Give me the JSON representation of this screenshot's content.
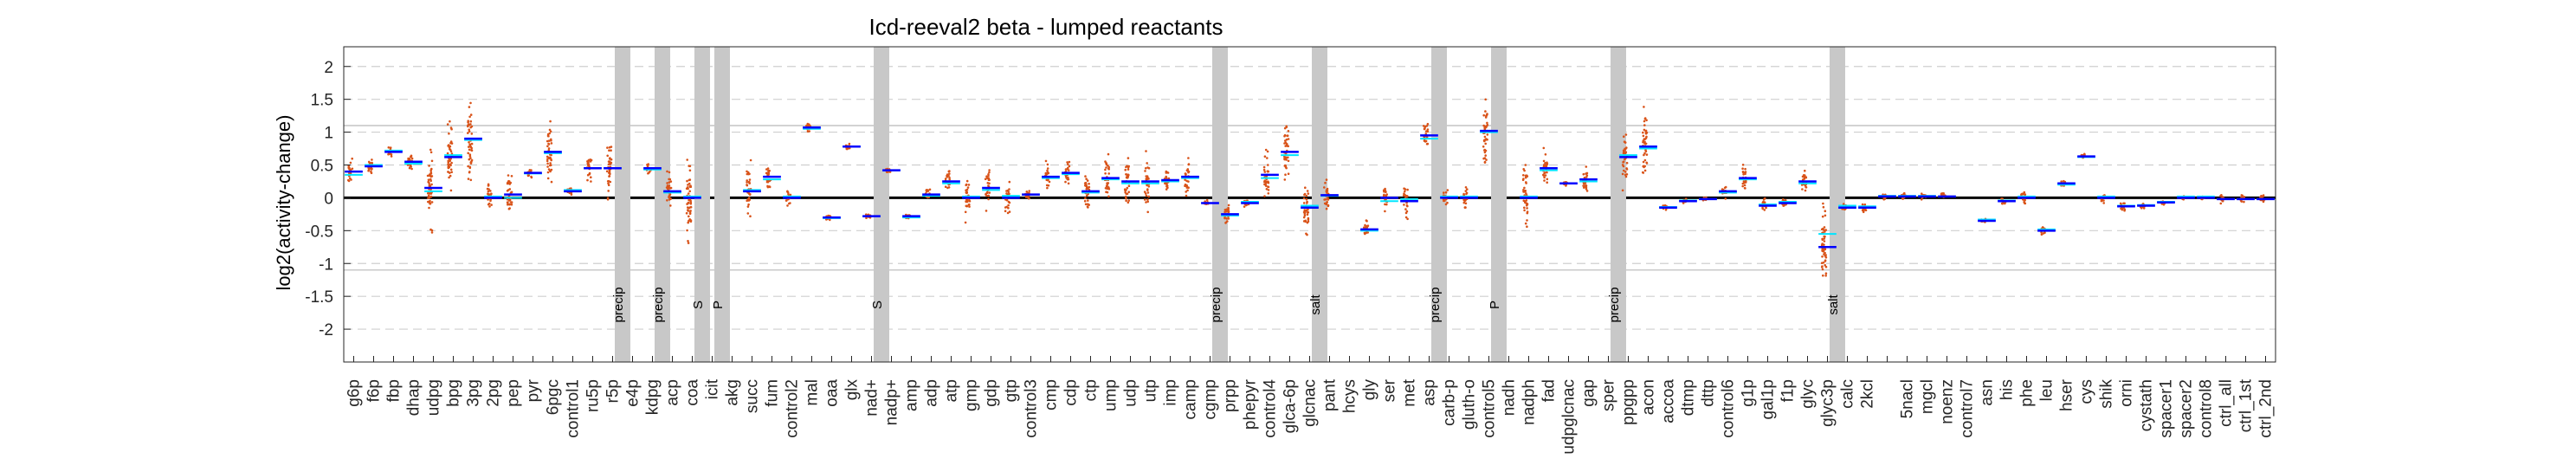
{
  "chart_data": {
    "type": "scatter",
    "title": "Icd-reeval2 beta - lumped reactants",
    "xlabel": "",
    "ylabel": "log2(activity-change)",
    "ylim": [
      -2.5,
      2.3
    ],
    "yticks": [
      -2,
      -1.5,
      -1,
      -0.5,
      0,
      0.5,
      1,
      1.5,
      2
    ],
    "grid": "dashed horizontal at ±0.5 steps, solid at ±1.1",
    "colors": {
      "points": "#d95319",
      "mean": "#0000ff",
      "median": "#00e5ff",
      "zero": "#000000",
      "band": "#c8c8c8"
    },
    "categories": [
      "g6p",
      "f6p",
      "fbp",
      "dhap",
      "udpg",
      "bpg",
      "3pg",
      "2pg",
      "pep",
      "pyr",
      "6pgc",
      "control1",
      "ru5p",
      "r5p",
      "e4p",
      "kdpg",
      "acp",
      "coa",
      "icit",
      "akg",
      "succ",
      "fum",
      "control2",
      "mal",
      "oaa",
      "glx",
      "nad+",
      "nadp+",
      "amp",
      "adp",
      "atp",
      "gmp",
      "gdp",
      "gtp",
      "control3",
      "cmp",
      "cdp",
      "ctp",
      "ump",
      "udp",
      "utp",
      "imp",
      "camp",
      "cgmp",
      "prpp",
      "phepyr",
      "control4",
      "glca-6p",
      "glcnac",
      "pant",
      "hcys",
      "gly",
      "ser",
      "met",
      "asp",
      "carb-p",
      "gluth-o",
      "control5",
      "nadh",
      "nadph",
      "fad",
      "udpglcnac",
      "gap",
      "sper",
      "ppgpp",
      "acon",
      "accoa",
      "dtmp",
      "dttp",
      "control6",
      "g1p",
      "gal1p",
      "f1p",
      "glyc",
      "glyc3p",
      "calc",
      "2kcl",
      "2kcl2",
      "5nacl",
      "mgcl",
      "noenz",
      "control7",
      "asn",
      "his",
      "phe",
      "leu",
      "hser",
      "cys",
      "shik",
      "orni",
      "cystath",
      "spacer1",
      "spacer2",
      "control8",
      "ctrl_all",
      "ctrl_1st",
      "ctrl_2nd"
    ],
    "category_labels": [
      "g6p",
      "f6p",
      "fbp",
      "dhap",
      "udpg",
      "bpg",
      "3pg",
      "2pg",
      "pep",
      "pyr",
      "6pgc",
      "control1",
      "ru5p",
      "r5p",
      "e4p",
      "kdpg",
      "acp",
      "coa",
      "icit",
      "akg",
      "succ",
      "fum",
      "control2",
      "mal",
      "oaa",
      "glx",
      "nad+",
      "nadp+",
      "amp",
      "adp",
      "atp",
      "gmp",
      "gdp",
      "gtp",
      "control3",
      "cmp",
      "cdp",
      "ctp",
      "ump",
      "udp",
      "utp",
      "imp",
      "camp",
      "cgmp",
      "prpp",
      "phepyr",
      "control4",
      "glca-6p",
      "glcnac",
      "pant",
      "hcys",
      "gly",
      "ser",
      "met",
      "asp",
      "carb-p",
      "gluth-o",
      "control5",
      "nadh",
      "nadph",
      "fad",
      "udpglcnac",
      "gap",
      "sper",
      "ppgpp",
      "acon",
      "accoa",
      "dtmp",
      "dttp",
      "control6",
      "g1p",
      "gal1p",
      "f1p",
      "glyc",
      "glyc3p",
      "calc",
      "2kcl",
      "",
      "5nacl",
      "mgcl",
      "noenz",
      "control7",
      "asn",
      "his",
      "phe",
      "leu",
      "hser",
      "cys",
      "shik",
      "orni",
      "cystath",
      "spacer1",
      "spacer2",
      "control8",
      "ctrl_all",
      "ctrl_1st",
      "ctrl_2nd"
    ],
    "means": [
      0.4,
      0.48,
      0.7,
      0.55,
      0.15,
      0.62,
      0.9,
      0.0,
      0.05,
      0.38,
      0.7,
      0.1,
      0.45,
      0.45,
      null,
      0.45,
      0.1,
      0.0,
      null,
      null,
      0.1,
      0.32,
      0.0,
      1.07,
      -0.3,
      0.78,
      -0.28,
      0.42,
      -0.28,
      0.05,
      0.25,
      0.0,
      0.15,
      0.0,
      0.05,
      0.32,
      0.38,
      0.1,
      0.3,
      0.25,
      0.25,
      0.27,
      0.32,
      -0.08,
      -0.25,
      -0.08,
      0.35,
      0.7,
      -0.15,
      0.04,
      null,
      -0.48,
      0.0,
      -0.05,
      0.95,
      0.0,
      0.0,
      1.02,
      null,
      0.0,
      0.45,
      0.22,
      0.28,
      null,
      0.62,
      0.78,
      -0.15,
      -0.05,
      -0.02,
      0.1,
      0.3,
      -0.12,
      -0.08,
      0.25,
      -0.75,
      -0.15,
      -0.15,
      0.02,
      0.02,
      0.02,
      0.02,
      null,
      -0.35,
      -0.05,
      0.0,
      -0.5,
      0.22,
      0.63,
      0.0,
      -0.13,
      -0.12,
      -0.07,
      0.0,
      0.0,
      -0.02,
      -0.02,
      -0.02
    ],
    "medians": [
      0.35,
      0.5,
      0.72,
      0.52,
      0.1,
      0.65,
      0.88,
      0.02,
      0.0,
      0.37,
      0.68,
      0.12,
      0.45,
      0.45,
      null,
      0.43,
      0.08,
      0.02,
      null,
      null,
      0.12,
      0.28,
      0.02,
      1.05,
      -0.31,
      0.78,
      -0.28,
      0.42,
      -0.3,
      0.03,
      0.22,
      0.02,
      0.12,
      0.03,
      0.05,
      0.3,
      0.36,
      0.08,
      0.28,
      0.22,
      0.22,
      0.25,
      0.3,
      -0.08,
      -0.27,
      -0.06,
      0.3,
      0.65,
      -0.12,
      0.03,
      null,
      -0.5,
      -0.05,
      -0.02,
      0.9,
      0.02,
      0.02,
      1.0,
      null,
      0.02,
      0.42,
      0.22,
      0.25,
      null,
      0.65,
      0.75,
      -0.14,
      -0.04,
      -0.02,
      0.08,
      0.28,
      -0.1,
      -0.06,
      0.22,
      -0.55,
      -0.12,
      -0.13,
      0.03,
      0.03,
      0.03,
      0.02,
      null,
      -0.33,
      -0.04,
      0.02,
      -0.48,
      0.2,
      0.62,
      0.02,
      -0.12,
      -0.11,
      -0.06,
      0.02,
      0.02,
      -0.02,
      -0.02,
      -0.02
    ],
    "spreads": [
      0.15,
      0.1,
      0.06,
      0.12,
      0.5,
      0.4,
      0.45,
      0.15,
      0.25,
      0.06,
      0.35,
      0.05,
      0.15,
      0.3,
      null,
      0.05,
      0.25,
      0.5,
      null,
      null,
      0.3,
      0.15,
      0.08,
      0.06,
      0.05,
      0.03,
      0.03,
      0.03,
      0.05,
      0.08,
      0.12,
      0.25,
      0.2,
      0.2,
      0.08,
      0.15,
      0.15,
      0.2,
      0.25,
      0.28,
      0.3,
      0.2,
      0.2,
      0.04,
      0.15,
      0.05,
      0.3,
      0.35,
      0.35,
      0.18,
      null,
      0.1,
      0.15,
      0.2,
      0.15,
      0.1,
      0.12,
      0.35,
      null,
      0.35,
      0.2,
      0.03,
      0.15,
      null,
      0.3,
      0.4,
      0.03,
      0.03,
      0.02,
      0.08,
      0.15,
      0.08,
      0.05,
      0.15,
      0.5,
      0.05,
      0.05,
      0.04,
      0.04,
      0.04,
      0.04,
      null,
      0.02,
      0.04,
      0.08,
      0.06,
      0.05,
      0.03,
      0.06,
      0.05,
      0.04,
      0.03,
      0.02,
      0.02,
      0.06,
      0.06,
      0.06
    ],
    "bands": [
      {
        "after": "r5p",
        "label": "precip"
      },
      {
        "after": "kdpg",
        "label": "precip"
      },
      {
        "after": "coa",
        "label": "S"
      },
      {
        "after": "icit",
        "label": "P"
      },
      {
        "after": "nad+",
        "label": "S"
      },
      {
        "after": "cgmp",
        "label": "precip"
      },
      {
        "after": "glcnac",
        "label": "salt"
      },
      {
        "after": "asp",
        "label": "precip"
      },
      {
        "after": "control5",
        "label": "P"
      },
      {
        "after": "sper",
        "label": "precip"
      },
      {
        "after": "glyc3p",
        "label": "salt"
      }
    ]
  }
}
